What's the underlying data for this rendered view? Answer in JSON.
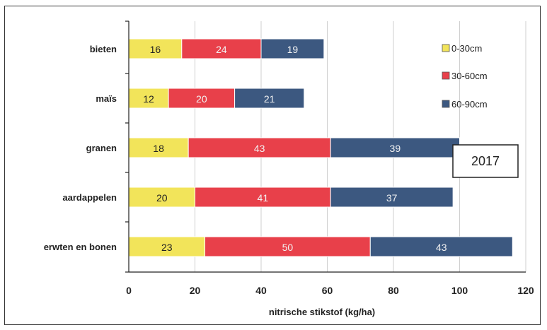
{
  "chart_data": {
    "type": "bar",
    "orientation": "horizontal",
    "stacked": true,
    "categories": [
      "bieten",
      "maïs",
      "granen",
      "aardappelen",
      "erwten en bonen"
    ],
    "series": [
      {
        "name": "0-30cm",
        "color": "#f2e45a",
        "values": [
          16,
          12,
          18,
          20,
          23
        ]
      },
      {
        "name": "30-60cm",
        "color": "#e8404a",
        "values": [
          24,
          20,
          43,
          41,
          50
        ]
      },
      {
        "name": "60-90cm",
        "color": "#3c5880",
        "values": [
          19,
          21,
          39,
          37,
          43
        ]
      }
    ],
    "xlabel": "nitrische stikstof (kg/ha)",
    "ylabel": "",
    "xlim": [
      0,
      120
    ],
    "xticks": [
      0,
      20,
      40,
      60,
      80,
      100,
      120
    ],
    "grid": "vertical",
    "legend": "top-right",
    "annotation": "2017"
  }
}
